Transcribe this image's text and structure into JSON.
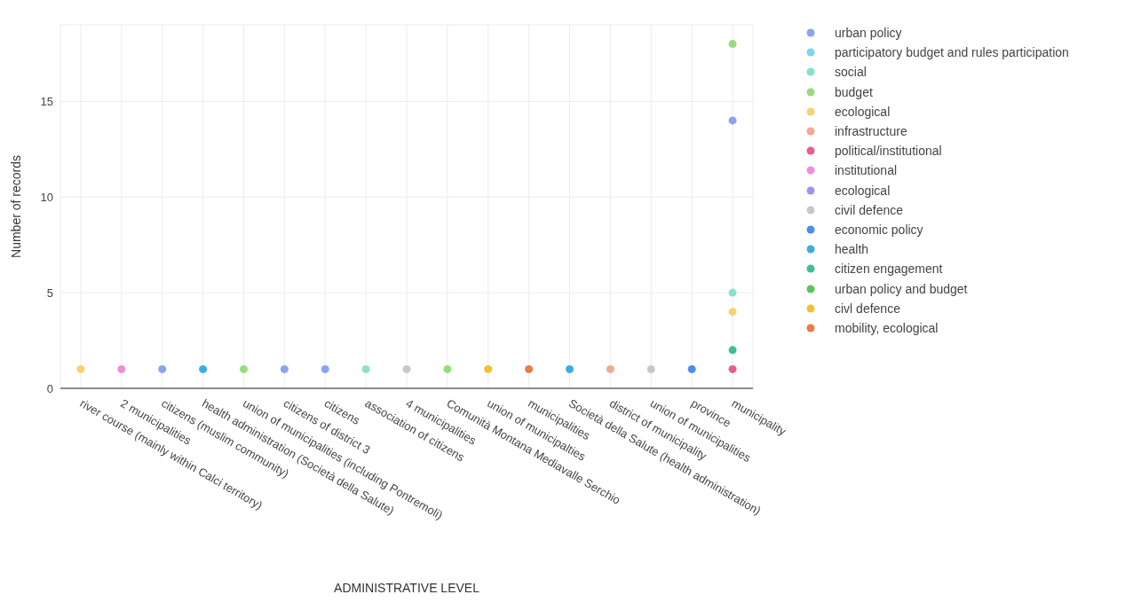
{
  "chart_data": {
    "type": "scatter",
    "xlabel": "ADMINISTRATIVE LEVEL",
    "ylabel": "Number of records",
    "categories": [
      "river course (mainly within Calci territory)",
      "2 municipalities",
      "citizens (muslim community)",
      "health administration (Società della Salute)",
      "union of municipalities (including Pontremoli)",
      "citizens of district 3",
      "citizens",
      "association of citizens",
      "4 municipalities",
      "Comunità Montana Mediavalle Serchio",
      "union of municipalties",
      "municipalities",
      "Società della Salute (health administration)",
      "district of municipality",
      "union of municipalities",
      "province",
      "municipality"
    ],
    "ylim": [
      0,
      19
    ],
    "yticks": [
      0,
      5,
      10,
      15
    ],
    "grid": true,
    "legend": "top right",
    "marker": "circle",
    "series": [
      {
        "name": "urban policy",
        "color": "#8ca3ee",
        "values": [
          null,
          null,
          1,
          null,
          null,
          1,
          1,
          null,
          null,
          null,
          null,
          null,
          null,
          null,
          null,
          null,
          14
        ]
      },
      {
        "name": "participatory budget and rules participation",
        "color": "#7fd3ef",
        "values": [
          null,
          null,
          null,
          null,
          null,
          null,
          null,
          null,
          null,
          null,
          null,
          null,
          null,
          null,
          null,
          null,
          null
        ]
      },
      {
        "name": "social",
        "color": "#86e3c9",
        "values": [
          null,
          null,
          null,
          null,
          null,
          null,
          null,
          1,
          null,
          null,
          null,
          null,
          null,
          null,
          null,
          null,
          5
        ]
      },
      {
        "name": "budget",
        "color": "#95dd7c",
        "values": [
          null,
          null,
          null,
          null,
          1,
          null,
          null,
          null,
          null,
          1,
          null,
          null,
          null,
          null,
          null,
          null,
          18
        ]
      },
      {
        "name": "ecological",
        "color": "#fbd06e",
        "values": [
          1,
          null,
          null,
          null,
          null,
          null,
          null,
          null,
          null,
          null,
          null,
          null,
          null,
          null,
          null,
          null,
          4
        ]
      },
      {
        "name": "infrastructure",
        "color": "#f2a995",
        "values": [
          null,
          null,
          null,
          null,
          null,
          null,
          null,
          null,
          null,
          null,
          null,
          null,
          null,
          1,
          null,
          null,
          null
        ]
      },
      {
        "name": "political/institutional",
        "color": "#ec5d8b",
        "values": [
          null,
          null,
          null,
          null,
          null,
          null,
          null,
          null,
          null,
          null,
          null,
          null,
          null,
          null,
          null,
          null,
          1
        ]
      },
      {
        "name": "institutional",
        "color": "#ef8fd9",
        "values": [
          null,
          1,
          null,
          null,
          null,
          null,
          null,
          null,
          null,
          null,
          null,
          null,
          null,
          null,
          null,
          null,
          null
        ]
      },
      {
        "name": "ecological",
        "color": "#a591ec",
        "values": [
          null,
          null,
          null,
          null,
          null,
          null,
          null,
          null,
          null,
          null,
          null,
          null,
          null,
          null,
          null,
          null,
          null
        ]
      },
      {
        "name": "civil defence",
        "color": "#c8c8c8",
        "values": [
          null,
          null,
          null,
          null,
          null,
          null,
          null,
          null,
          1,
          null,
          null,
          null,
          null,
          null,
          1,
          null,
          null
        ]
      },
      {
        "name": "economic policy",
        "color": "#4a8fea",
        "values": [
          null,
          null,
          null,
          null,
          null,
          null,
          null,
          null,
          null,
          null,
          null,
          null,
          null,
          null,
          null,
          1,
          null
        ]
      },
      {
        "name": "health",
        "color": "#3aaee0",
        "values": [
          null,
          null,
          null,
          1,
          null,
          null,
          null,
          null,
          null,
          null,
          null,
          null,
          1,
          null,
          null,
          null,
          null
        ]
      },
      {
        "name": "citizen engagement",
        "color": "#3ebf95",
        "values": [
          null,
          null,
          null,
          null,
          null,
          null,
          null,
          null,
          null,
          null,
          null,
          null,
          null,
          null,
          null,
          null,
          2
        ]
      },
      {
        "name": "urban policy and budget",
        "color": "#5cc45c",
        "values": [
          null,
          null,
          null,
          null,
          null,
          null,
          null,
          null,
          null,
          null,
          null,
          null,
          null,
          null,
          null,
          null,
          null
        ]
      },
      {
        "name": "civl defence",
        "color": "#f4c028",
        "values": [
          null,
          null,
          null,
          null,
          null,
          null,
          null,
          null,
          null,
          null,
          1,
          null,
          null,
          null,
          null,
          null,
          null
        ]
      },
      {
        "name": "mobility, ecological",
        "color": "#ec7b45",
        "values": [
          null,
          null,
          null,
          null,
          null,
          null,
          null,
          null,
          null,
          null,
          null,
          1,
          null,
          null,
          null,
          null,
          null
        ]
      }
    ]
  }
}
